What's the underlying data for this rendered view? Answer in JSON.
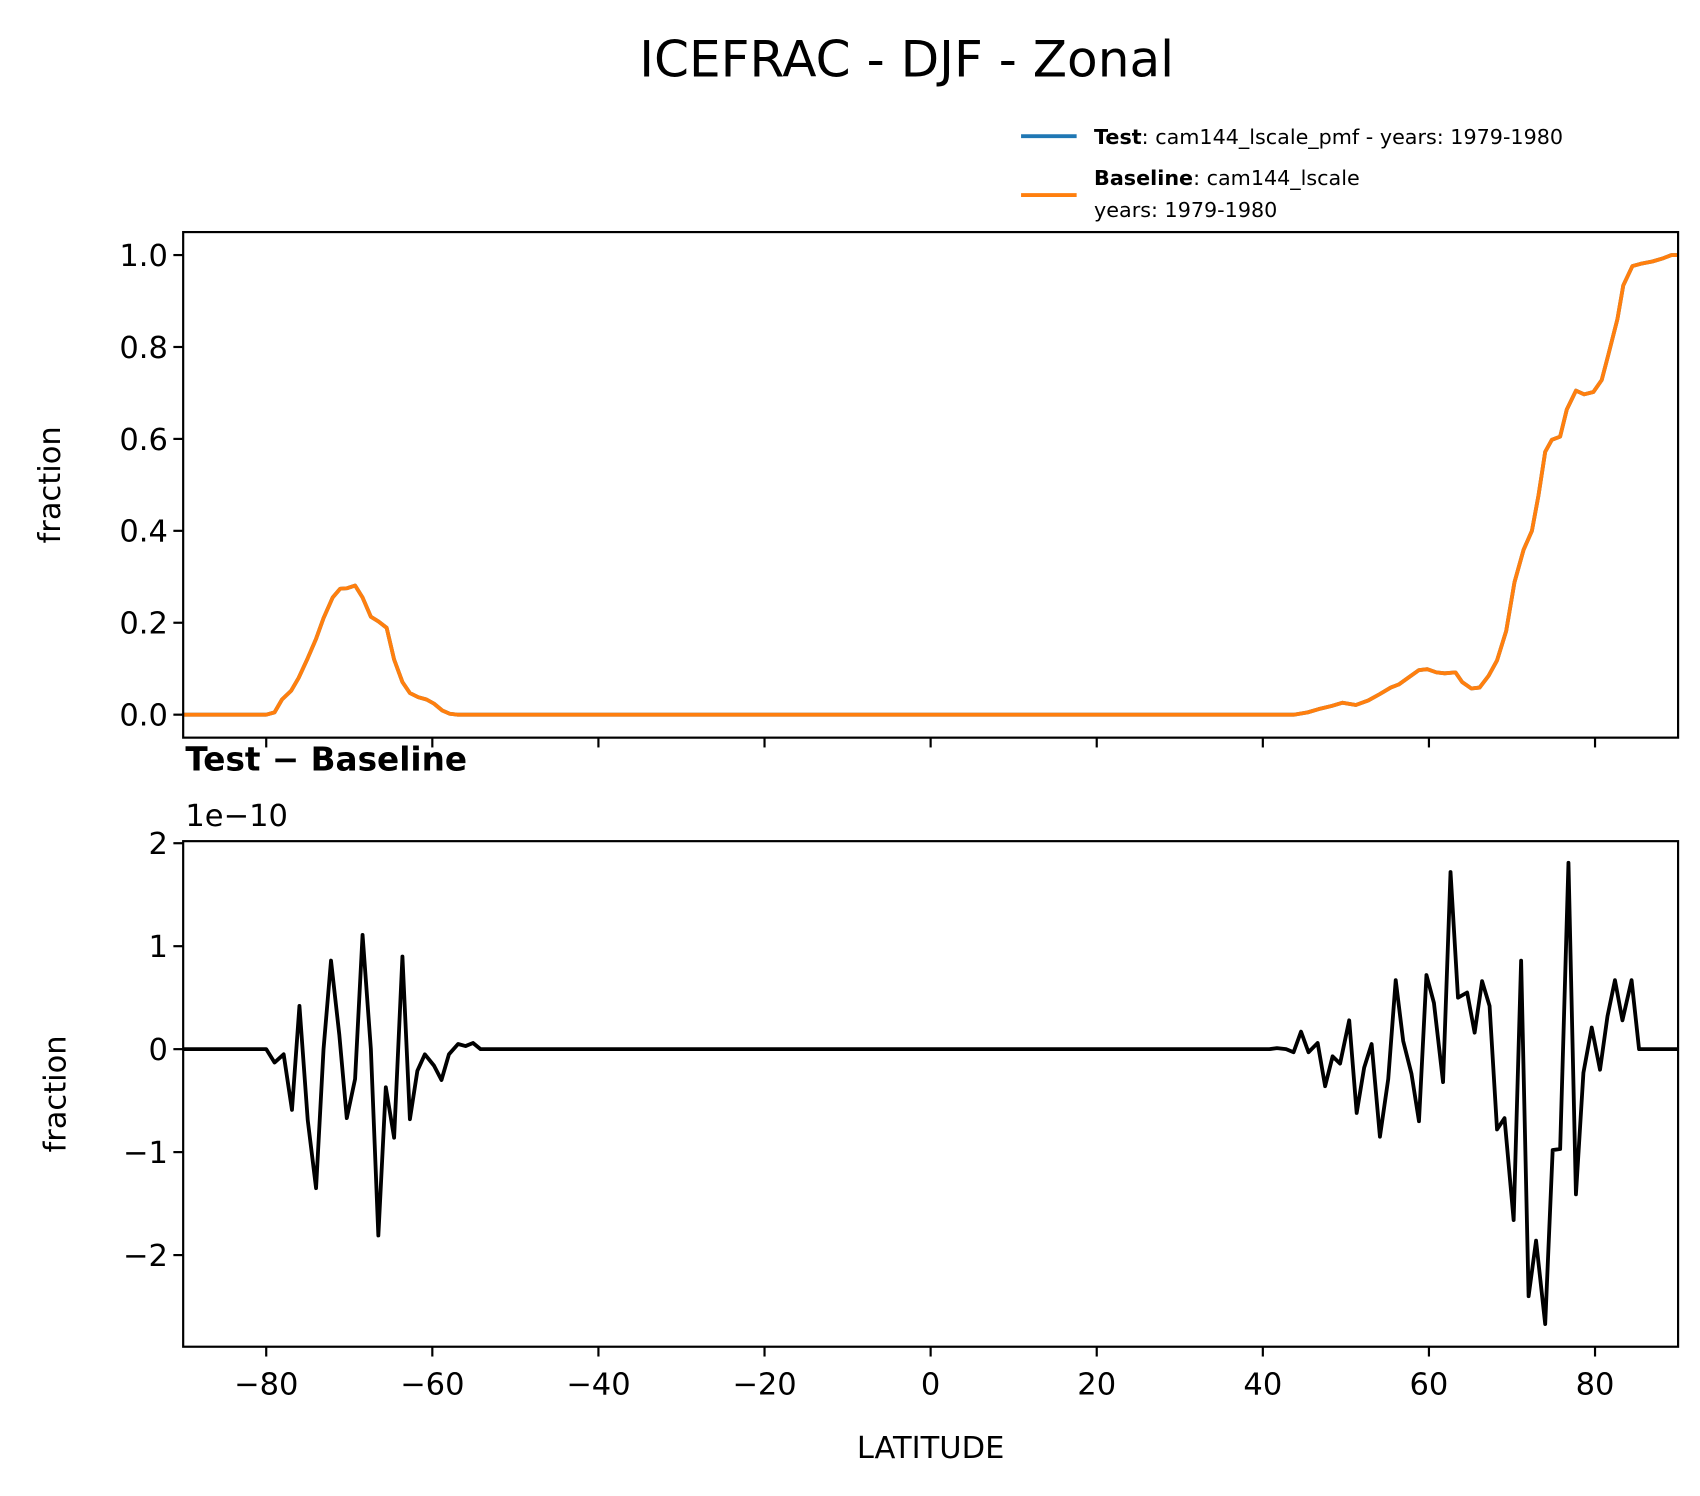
{
  "title": "ICEFRAC - DJF - Zonal",
  "chart_data": [
    {
      "type": "line",
      "ylabel": "fraction",
      "sharex": true,
      "legend": "upper right",
      "xlim": [
        -90,
        90
      ],
      "xticks": [
        -80,
        -60,
        -40,
        -20,
        0,
        20,
        40,
        60,
        80
      ],
      "ylim": [
        -0.05,
        1.05
      ],
      "yticks": [
        {
          "value": 0,
          "label": "0.0"
        },
        0.2,
        0.4,
        0.6,
        0.8,
        {
          "value": 1,
          "label": "1.0"
        }
      ],
      "x": [
        -90,
        -80,
        -79.0,
        -78.1,
        -77.0,
        -76.1,
        -75.0,
        -74.0,
        -73.1,
        -72.0,
        -71.1,
        -70.3,
        -69.3,
        -68.4,
        -67.4,
        -66.5,
        -65.5,
        -64.6,
        -63.6,
        -62.7,
        -61.7,
        -60.7,
        -59.8,
        -58.8,
        -57.9,
        -57.0,
        43.8,
        45.4,
        46.7,
        48.3,
        49.6,
        51.2,
        52.7,
        54.1,
        55.4,
        56.4,
        57.7,
        58.8,
        59.8,
        60.9,
        61.9,
        63.2,
        64.0,
        65.1,
        66.1,
        67.2,
        68.2,
        69.3,
        70.3,
        71.4,
        72.4,
        73.2,
        74.0,
        74.8,
        75.8,
        76.6,
        77.7,
        78.7,
        79.8,
        80.8,
        81.6,
        82.7,
        83.4,
        84.5,
        85.5,
        86.9,
        88.2,
        89.2,
        90
      ],
      "series": [
        {
          "name": "Test: cam144_lscale_pmf - years: 1979-1980",
          "color": "#1f77b4",
          "values": [
            0,
            0,
            0.005,
            0.033,
            0.052,
            0.08,
            0.123,
            0.165,
            0.21,
            0.255,
            0.274,
            0.275,
            0.281,
            0.255,
            0.213,
            0.203,
            0.189,
            0.12,
            0.071,
            0.047,
            0.038,
            0.033,
            0.024,
            0.009,
            0.002,
            0,
            0,
            0.005,
            0.012,
            0.019,
            0.026,
            0.021,
            0.031,
            0.045,
            0.059,
            0.066,
            0.083,
            0.097,
            0.099,
            0.092,
            0.09,
            0.092,
            0.071,
            0.057,
            0.059,
            0.085,
            0.118,
            0.182,
            0.288,
            0.359,
            0.4,
            0.478,
            0.572,
            0.598,
            0.605,
            0.664,
            0.705,
            0.697,
            0.702,
            0.728,
            0.783,
            0.861,
            0.934,
            0.976,
            0.981,
            0.986,
            0.993,
            1.0,
            1.0
          ]
        },
        {
          "name": "Baseline: cam144_lscale\nyears: 1979-1980",
          "color": "#ff7f0e",
          "values": [
            0,
            0,
            0.005,
            0.033,
            0.052,
            0.08,
            0.123,
            0.165,
            0.21,
            0.255,
            0.274,
            0.275,
            0.281,
            0.255,
            0.213,
            0.203,
            0.189,
            0.12,
            0.071,
            0.047,
            0.038,
            0.033,
            0.024,
            0.009,
            0.002,
            0,
            0,
            0.005,
            0.012,
            0.019,
            0.026,
            0.021,
            0.031,
            0.045,
            0.059,
            0.066,
            0.083,
            0.097,
            0.099,
            0.092,
            0.09,
            0.092,
            0.071,
            0.057,
            0.059,
            0.085,
            0.118,
            0.182,
            0.288,
            0.359,
            0.4,
            0.478,
            0.572,
            0.598,
            0.605,
            0.664,
            0.705,
            0.697,
            0.702,
            0.728,
            0.783,
            0.861,
            0.934,
            0.976,
            0.981,
            0.986,
            0.993,
            1.0,
            1.0
          ]
        }
      ]
    },
    {
      "type": "line",
      "title": "Test − Baseline",
      "offset_text": "1e−10",
      "ylabel": "fraction",
      "xlabel": "LATITUDE",
      "xlim": [
        -90,
        90
      ],
      "xticks": [
        {
          "value": -80,
          "label": "−80"
        },
        {
          "value": -60,
          "label": "−60"
        },
        {
          "value": -40,
          "label": "−40"
        },
        {
          "value": -20,
          "label": "−20"
        },
        0,
        20,
        40,
        60,
        80
      ],
      "ylim": [
        -2.89,
        2.02
      ],
      "yticks": [
        {
          "value": -2,
          "label": "−2"
        },
        {
          "value": -1,
          "label": "−1"
        },
        0,
        1,
        2
      ],
      "x": [
        -90,
        -80,
        -79.0,
        -77.9,
        -76.9,
        -76.0,
        -75.0,
        -74.0,
        -73.1,
        -72.2,
        -71.2,
        -70.3,
        -69.3,
        -68.4,
        -67.4,
        -66.5,
        -65.6,
        -64.6,
        -63.6,
        -62.7,
        -61.8,
        -60.9,
        -59.8,
        -58.9,
        -58.0,
        -56.9,
        -56.0,
        -55.1,
        -54.2,
        40.8,
        41.7,
        42.8,
        43.7,
        44.6,
        45.5,
        46.6,
        47.5,
        48.4,
        49.3,
        50.4,
        51.3,
        52.2,
        53.1,
        54.1,
        55.1,
        56.0,
        56.9,
        57.9,
        58.8,
        59.7,
        60.6,
        61.7,
        62.6,
        63.5,
        64.6,
        65.5,
        66.4,
        67.3,
        68.2,
        69.1,
        70.2,
        71.1,
        72.0,
        72.9,
        74.0,
        74.9,
        75.8,
        76.8,
        77.7,
        78.6,
        79.6,
        80.6,
        81.5,
        82.4,
        83.3,
        84.4,
        85.3,
        90
      ],
      "series": [
        {
          "color": "#000000",
          "values": [
            0,
            0,
            -0.13,
            -0.05,
            -0.59,
            0.42,
            -0.69,
            -1.35,
            0,
            0.86,
            0.14,
            -0.67,
            -0.29,
            1.11,
            0,
            -1.81,
            -0.37,
            -0.86,
            0.9,
            -0.68,
            -0.21,
            -0.05,
            -0.16,
            -0.3,
            -0.05,
            0.05,
            0.03,
            0.06,
            0,
            0,
            0.01,
            0,
            -0.03,
            0.17,
            -0.03,
            0.06,
            -0.36,
            -0.07,
            -0.14,
            0.28,
            -0.62,
            -0.18,
            0.05,
            -0.85,
            -0.29,
            0.67,
            0.08,
            -0.24,
            -0.7,
            0.72,
            0.45,
            -0.32,
            1.72,
            0.5,
            0.55,
            0.16,
            0.66,
            0.42,
            -0.78,
            -0.67,
            -1.66,
            0.86,
            -2.4,
            -1.86,
            -2.67,
            -0.98,
            -0.97,
            1.81,
            -1.41,
            -0.23,
            0.21,
            -0.2,
            0.32,
            0.67,
            0.28,
            0.67,
            0,
            0
          ]
        }
      ]
    }
  ]
}
